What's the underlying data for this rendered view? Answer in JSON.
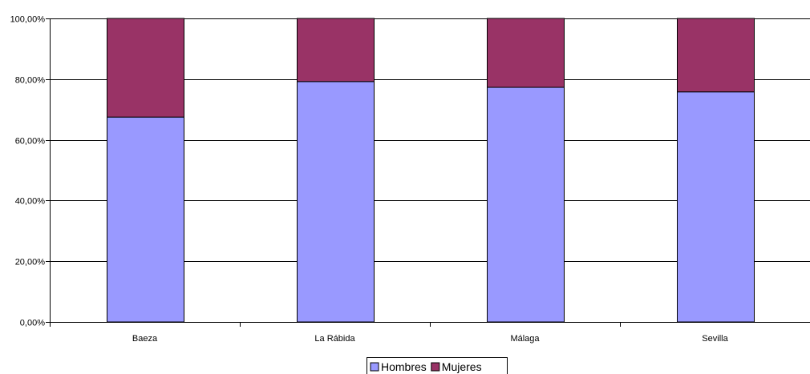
{
  "chart_data": {
    "type": "bar",
    "stacked": true,
    "categories": [
      "Baeza",
      "La Rábida",
      "Málaga",
      "Sevilla"
    ],
    "series": [
      {
        "name": "Hombres",
        "values": [
          67.5,
          79.2,
          77.3,
          75.8
        ],
        "color": "#9999ff"
      },
      {
        "name": "Mujeres",
        "values": [
          32.5,
          20.8,
          22.7,
          24.2
        ],
        "color": "#993366"
      }
    ],
    "y_ticks": [
      "0,00%",
      "20,00%",
      "40,00%",
      "60,00%",
      "80,00%",
      "100,00%"
    ],
    "ylim": [
      0,
      100
    ],
    "title": "",
    "xlabel": "",
    "ylabel": "",
    "grid": true,
    "legend_position": "bottom-center"
  }
}
